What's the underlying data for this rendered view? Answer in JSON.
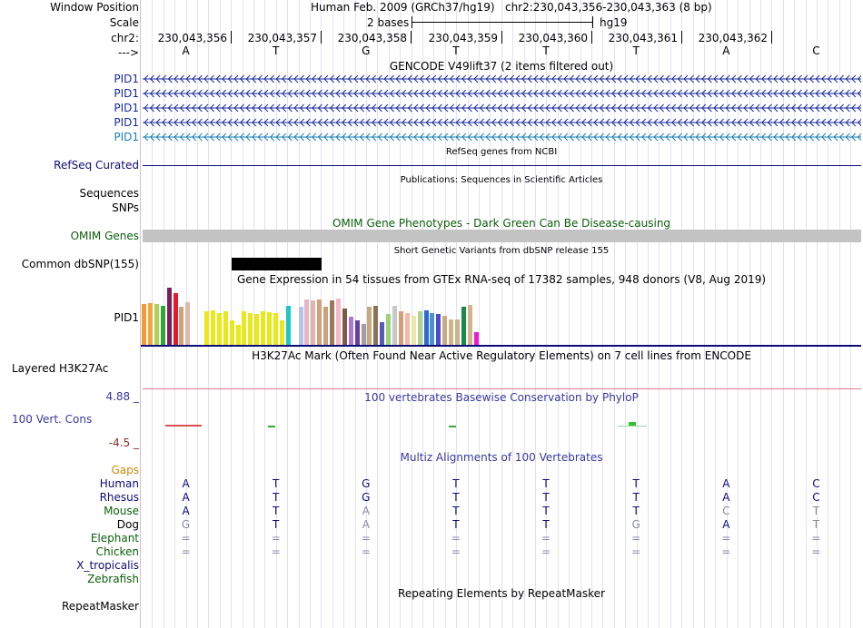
{
  "labels": {
    "window_position": "Window Position",
    "scale": "Scale",
    "chrom": "chr2:",
    "strand_arrow": "--->"
  },
  "header": {
    "assembly": "Human Feb. 2009 (GRCh37/hg19)",
    "position": "chr2:230,043,356-230,043,363 (8 bp)",
    "scale_text": "2 bases",
    "scale_assembly": "hg19"
  },
  "ruler": {
    "positions": [
      "230,043,356",
      "230,043,357",
      "230,043,358",
      "230,043,359",
      "230,043,360",
      "230,043,361",
      "230,043,362"
    ]
  },
  "reference_bases": [
    "A",
    "T",
    "G",
    "T",
    "T",
    "T",
    "A",
    "C"
  ],
  "tracks": {
    "gencode": {
      "title": "GENCODE V49lift37 (2 items filtered out)",
      "genes": [
        "PID1",
        "PID1",
        "PID1",
        "PID1",
        "PID1"
      ],
      "colors": [
        "#1a2a99",
        "#1a2a99",
        "#1a2a99",
        "#1a2a99",
        "#1a7fb5"
      ]
    },
    "refseq": {
      "title": "RefSeq genes from NCBI",
      "label": "RefSeq Curated"
    },
    "publications": {
      "title": "Publications: Sequences in Scientific Articles",
      "label_sequences": "Sequences",
      "label_snps": "SNPs"
    },
    "omim": {
      "title": "OMIM Gene Phenotypes - Dark Green Can Be Disease-causing",
      "label": "OMIM Genes"
    },
    "dbsnp": {
      "title": "Short Genetic Variants from dbSNP release 155",
      "label": "Common dbSNP(155)"
    },
    "gtex": {
      "title": "Gene Expression in 54 tissues from GTEx RNA-seq of 17382 samples, 948 donors (V8, Aug 2019)",
      "gene": "PID1",
      "relative_levels": [
        0.72,
        0.73,
        0.72,
        0.68,
        1.0,
        0.9,
        0.66,
        0.75,
        0.0,
        0.0,
        0.58,
        0.61,
        0.55,
        0.58,
        0.43,
        0.35,
        0.59,
        0.56,
        0.54,
        0.58,
        0.57,
        0.55,
        0.43,
        0.68,
        0.0,
        0.66,
        0.8,
        0.78,
        0.8,
        0.66,
        0.78,
        0.81,
        0.64,
        0.49,
        0.43,
        0.36,
        0.66,
        0.68,
        0.39,
        0.54,
        0.68,
        0.59,
        0.56,
        0.5,
        0.58,
        0.6,
        0.55,
        0.54,
        0.5,
        0.45,
        0.44,
        0.66,
        0.7,
        0.23
      ],
      "colors": [
        "#f49a35",
        "#f4a33e",
        "#b0d25a",
        "#2fa63a",
        "#7a1f5a",
        "#e41a2a",
        "#d2a07b",
        "#dcb8ad",
        "#ffffff",
        "#ffffff",
        "#e8e81a",
        "#e8e81a",
        "#e8e81a",
        "#e8e81a",
        "#e8e81a",
        "#e8e81a",
        "#e8e81a",
        "#e8e81a",
        "#e8e81a",
        "#e8e81a",
        "#e8e81a",
        "#e8e81a",
        "#e8e81a",
        "#19c8c8",
        "#ffffff",
        "#b3c7e5",
        "#e5b5c3",
        "#dcb8ad",
        "#d2a07b",
        "#c9a27c",
        "#9b7856",
        "#f5b8c6",
        "#7f5a47",
        "#a77bd2",
        "#6a3da0",
        "#a0a0a0",
        "#c8aa7e",
        "#8c7357",
        "#5a5ab4",
        "#9ad27a",
        "#c8c8c8",
        "#d2a078",
        "#f5b8a6",
        "#e8e8a8",
        "#b0d28c",
        "#2a6ad2",
        "#4a90d2",
        "#4a4ad2",
        "#c8aa7e",
        "#d2b48c",
        "#c8b48c",
        "#1a8a4a",
        "#d2b48c",
        "#f01ad2"
      ]
    },
    "h3k27ac": {
      "title": "H3K27Ac Mark (Often Found Near Active Regulatory Elements) on 7 cell lines from ENCODE",
      "label": "Layered H3K27Ac"
    },
    "phylop": {
      "title": "100 vertebrates Basewise Conservation by PhyloP",
      "label": "100 Vert. Cons",
      "max": "4.88 _",
      "min": "-4.5 _"
    },
    "multiz": {
      "title": "Multiz Alignments of 100 Vertebrates",
      "gaps_label": "Gaps",
      "species": [
        {
          "name": "Human",
          "color": "#0c0c78",
          "bases": [
            "A",
            "T",
            "G",
            "T",
            "T",
            "T",
            "A",
            "C"
          ],
          "dim": [
            false,
            false,
            false,
            false,
            false,
            false,
            false,
            false
          ]
        },
        {
          "name": "Rhesus",
          "color": "#0c0c78",
          "bases": [
            "A",
            "T",
            "G",
            "T",
            "T",
            "T",
            "A",
            "C"
          ],
          "dim": [
            false,
            false,
            false,
            false,
            false,
            false,
            false,
            false
          ]
        },
        {
          "name": "Mouse",
          "color": "#0b5e0b",
          "bases": [
            "A",
            "T",
            "A",
            "T",
            "T",
            "T",
            "C",
            "T"
          ],
          "dim": [
            false,
            false,
            true,
            false,
            false,
            false,
            true,
            true
          ]
        },
        {
          "name": "Dog",
          "color": "#000000",
          "bases": [
            "G",
            "T",
            "A",
            "T",
            "T",
            "G",
            "A",
            "T"
          ],
          "dim": [
            true,
            false,
            true,
            false,
            false,
            true,
            false,
            true
          ]
        },
        {
          "name": "Elephant",
          "color": "#0b5e0b",
          "bases": [
            "=",
            "=",
            "=",
            "=",
            "=",
            "=",
            "=",
            "="
          ],
          "dim": [
            true,
            true,
            true,
            true,
            true,
            true,
            true,
            true
          ]
        },
        {
          "name": "Chicken",
          "color": "#0b5e0b",
          "bases": [
            "=",
            "=",
            "=",
            "=",
            "=",
            "=",
            "=",
            "="
          ],
          "dim": [
            true,
            true,
            true,
            true,
            true,
            true,
            true,
            true
          ]
        },
        {
          "name": "X_tropicalis",
          "color": "#0c0c78",
          "bases": [
            "",
            "",
            "",
            "",
            "",
            "",
            "",
            ""
          ],
          "dim": [
            false,
            false,
            false,
            false,
            false,
            false,
            false,
            false
          ]
        },
        {
          "name": "Zebrafish",
          "color": "#0b5e0b",
          "bases": [
            "",
            "",
            "",
            "",
            "",
            "",
            "",
            ""
          ],
          "dim": [
            false,
            false,
            false,
            false,
            false,
            false,
            false,
            false
          ]
        }
      ]
    },
    "repeatmasker": {
      "title": "Repeating Elements by RepeatMasker",
      "label": "RepeatMasker"
    }
  }
}
